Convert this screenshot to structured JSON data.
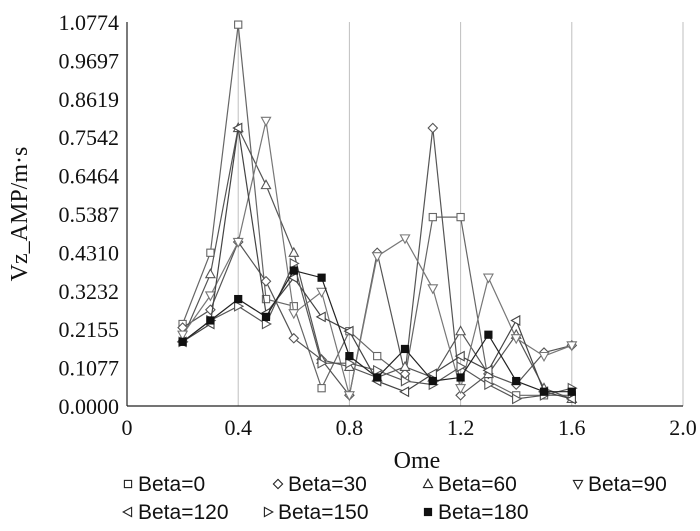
{
  "chart_data": {
    "type": "line",
    "title": "",
    "xlabel": "Ome",
    "ylabel": "Vz_AMP/m·s",
    "xlim": [
      0,
      2.0
    ],
    "ylim": [
      0,
      1.0774
    ],
    "xticks": [
      "0",
      "0.4",
      "0.8",
      "1.2",
      "1.6",
      "2.0"
    ],
    "yticks": [
      "0.0000",
      "0.1077",
      "0.2155",
      "0.3232",
      "0.4310",
      "0.5387",
      "0.6464",
      "0.7542",
      "0.8619",
      "0.9697",
      "1.0774"
    ],
    "grid": "vertical",
    "legend_position": "bottom",
    "x": [
      0.2,
      0.3,
      0.4,
      0.5,
      0.6,
      0.7,
      0.8,
      0.9,
      1.0,
      1.1,
      1.2,
      1.3,
      1.4,
      1.5,
      1.6
    ],
    "series": [
      {
        "name": "Beta=0",
        "marker": "square-open",
        "color": "#666666",
        "values": [
          0.23,
          0.43,
          1.07,
          0.3,
          0.28,
          0.05,
          0.21,
          0.14,
          0.08,
          0.53,
          0.53,
          0.07,
          0.03,
          0.03,
          0.03
        ]
      },
      {
        "name": "Beta=30",
        "marker": "diamond-open",
        "color": "#555555",
        "values": [
          0.22,
          0.27,
          0.46,
          0.35,
          0.19,
          0.13,
          0.03,
          0.43,
          0.09,
          0.78,
          0.03,
          0.09,
          0.06,
          0.15,
          0.17
        ]
      },
      {
        "name": "Beta=60",
        "marker": "triangle-up-open",
        "color": "#555555",
        "values": [
          0.19,
          0.37,
          0.78,
          0.62,
          0.43,
          0.13,
          0.11,
          0.08,
          0.11,
          0.08,
          0.21,
          0.09,
          0.2,
          0.05,
          0.02
        ]
      },
      {
        "name": "Beta=90",
        "marker": "triangle-down-open",
        "color": "#777777",
        "values": [
          0.2,
          0.31,
          0.46,
          0.8,
          0.26,
          0.32,
          0.03,
          0.42,
          0.47,
          0.33,
          0.05,
          0.36,
          0.19,
          0.14,
          0.17
        ]
      },
      {
        "name": "Beta=120",
        "marker": "triangle-left-open",
        "color": "#444444",
        "values": [
          0.18,
          0.23,
          0.78,
          0.26,
          0.36,
          0.25,
          0.21,
          0.07,
          0.04,
          0.09,
          0.14,
          0.1,
          0.24,
          0.04,
          0.02
        ]
      },
      {
        "name": "Beta=150",
        "marker": "triangle-right-open",
        "color": "#555555",
        "values": [
          0.18,
          0.24,
          0.28,
          0.23,
          0.4,
          0.12,
          0.12,
          0.1,
          0.07,
          0.06,
          0.11,
          0.06,
          0.02,
          0.03,
          0.05
        ]
      },
      {
        "name": "Beta=180",
        "marker": "square-filled",
        "color": "#222222",
        "values": [
          0.18,
          0.24,
          0.3,
          0.25,
          0.38,
          0.36,
          0.14,
          0.08,
          0.16,
          0.07,
          0.08,
          0.2,
          0.07,
          0.04,
          0.04
        ]
      }
    ]
  }
}
